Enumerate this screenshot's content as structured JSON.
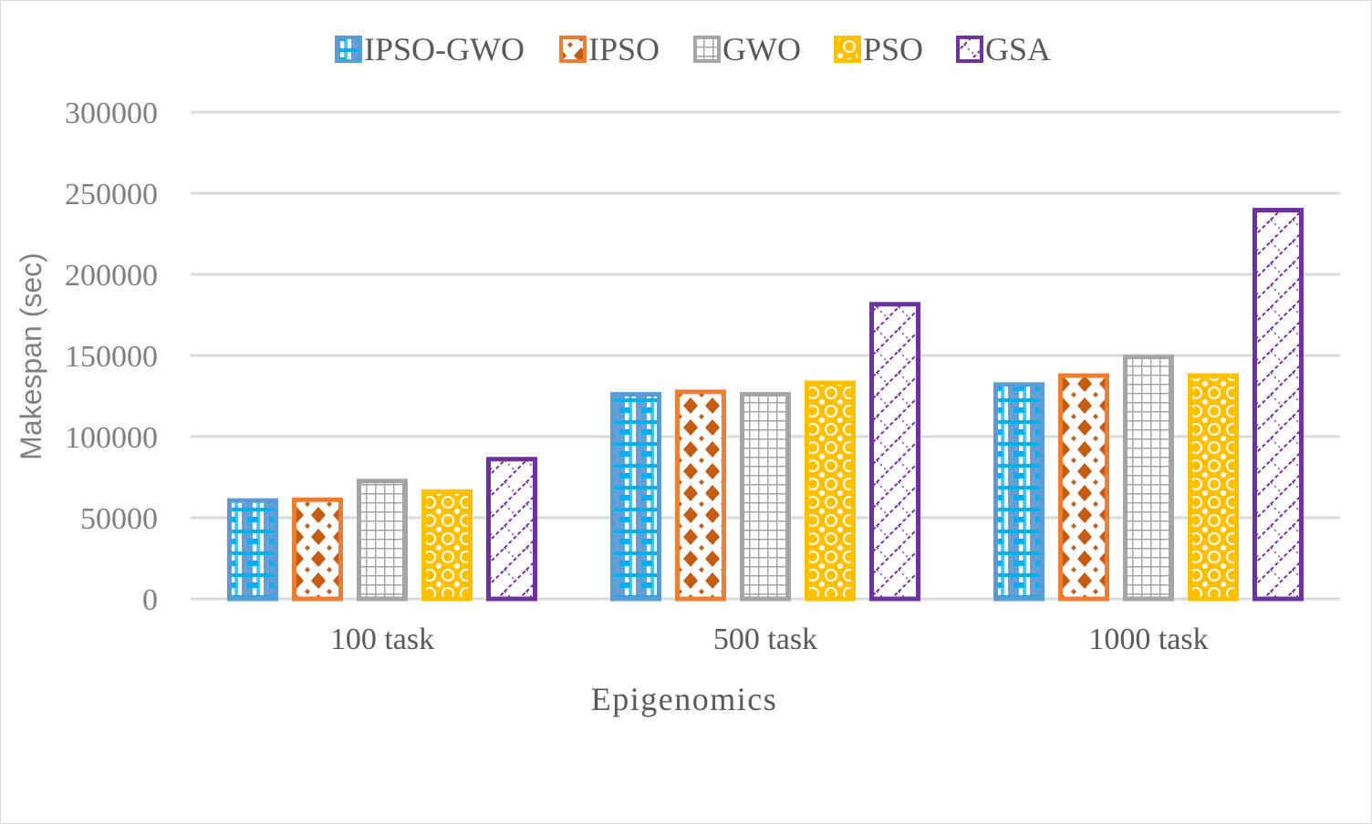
{
  "chart_data": {
    "type": "bar",
    "title": "",
    "categories": [
      "100 task",
      "500 task",
      "1000 task"
    ],
    "series": [
      {
        "name": "IPSO-GWO",
        "values": [
          62000,
          127500,
          133500
        ],
        "color": "#5b9bd5"
      },
      {
        "name": "IPSO",
        "values": [
          62500,
          129000,
          139000
        ],
        "color": "#ed7d31"
      },
      {
        "name": "GWO",
        "values": [
          74000,
          127500,
          150500
        ],
        "color": "#a5a5a5"
      },
      {
        "name": "PSO",
        "values": [
          67500,
          134500,
          139000
        ],
        "color": "#ffc000"
      },
      {
        "name": "GSA",
        "values": [
          87500,
          183000,
          241000
        ],
        "color": "#7030a0"
      }
    ],
    "xlabel": "Epigenomics",
    "ylabel": "Makespan (sec)",
    "ylim": [
      0,
      300000
    ],
    "yticks": [
      0,
      50000,
      100000,
      150000,
      200000,
      250000,
      300000
    ],
    "ytick_labels": [
      "0",
      "50000",
      "100000",
      "150000",
      "200000",
      "250000",
      "300000"
    ],
    "grid": true,
    "legend_position": "top"
  }
}
